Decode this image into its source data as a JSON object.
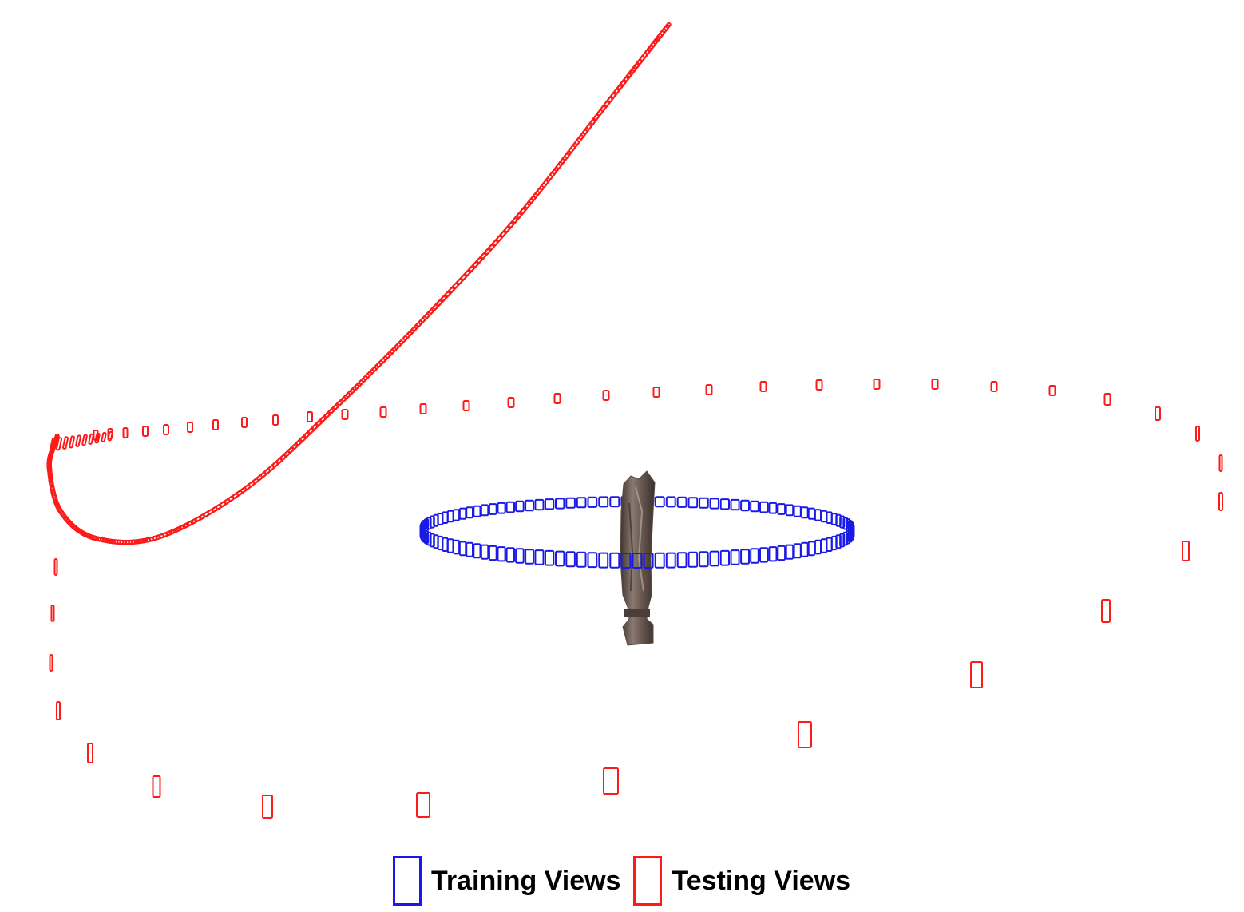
{
  "figure": {
    "object": "drill-bit-point-cloud",
    "colors": {
      "training": "#1a1ae6",
      "testing": "#ff1a1a",
      "background": "#ffffff"
    }
  },
  "legend": {
    "items": [
      {
        "label": "Training Views",
        "color": "#1a1ae6"
      },
      {
        "label": "Testing Views",
        "color": "#ff1a1a"
      }
    ]
  }
}
